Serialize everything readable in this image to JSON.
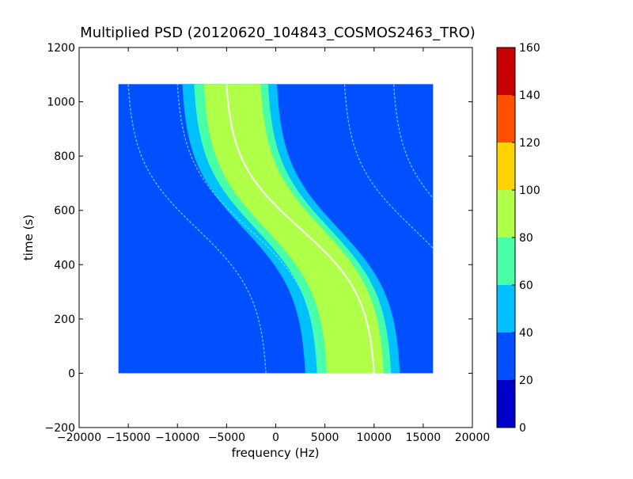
{
  "chart_data": {
    "type": "heatmap",
    "title": "Multiplied PSD (20120620_104843_COSMOS2463_TRO)",
    "xlabel": "frequency (Hz)",
    "ylabel": "time (s)",
    "xlim": [
      -20000,
      20000
    ],
    "ylim": [
      -200,
      1200
    ],
    "xticks": [
      -20000,
      -15000,
      -10000,
      -5000,
      0,
      5000,
      10000,
      15000,
      20000
    ],
    "yticks": [
      -200,
      0,
      200,
      400,
      600,
      800,
      1000,
      1200
    ],
    "data_extent": {
      "x": [
        -16000,
        16000
      ],
      "y": [
        0,
        1065
      ]
    },
    "colorbar": {
      "range": [
        0,
        160
      ],
      "ticks": [
        0,
        20,
        40,
        60,
        80,
        100,
        120,
        140,
        160
      ],
      "levels": [
        {
          "from": 0,
          "to": 20,
          "color": "#0000c8"
        },
        {
          "from": 20,
          "to": 40,
          "color": "#0050ff"
        },
        {
          "from": 40,
          "to": 60,
          "color": "#00c0ff"
        },
        {
          "from": 60,
          "to": 80,
          "color": "#48ffa8"
        },
        {
          "from": 80,
          "to": 100,
          "color": "#b0ff48"
        },
        {
          "from": 100,
          "to": 120,
          "color": "#ffd200"
        },
        {
          "from": 120,
          "to": 140,
          "color": "#ff5000"
        },
        {
          "from": 140,
          "to": 160,
          "color": "#c80000"
        }
      ]
    },
    "background_level_color": "#0050ff",
    "main_band": {
      "center_freq_top": -4000,
      "center_freq_bottom": 8500,
      "band_half_width_hz": [
        {
          "level_color": "#00c0ff",
          "half_width": 5500
        },
        {
          "level_color": "#48ffa8",
          "half_width": 4300
        },
        {
          "level_color": "#b0ff48",
          "half_width": 3300
        }
      ]
    },
    "traces": [
      {
        "name": "",
        "freq_top": -5000,
        "freq_bottom": 10000,
        "strong": true
      },
      {
        "name": "",
        "freq_top": -15000,
        "freq_bottom": -1000,
        "strong": false
      },
      {
        "name": "",
        "freq_top": -10000,
        "freq_bottom": 4500,
        "strong": false
      },
      {
        "name": "",
        "freq_top": 7000,
        "freq_bottom": 21000,
        "strong": false
      },
      {
        "name": "",
        "freq_top": 12000,
        "freq_bottom": 26000,
        "strong": false
      }
    ]
  }
}
